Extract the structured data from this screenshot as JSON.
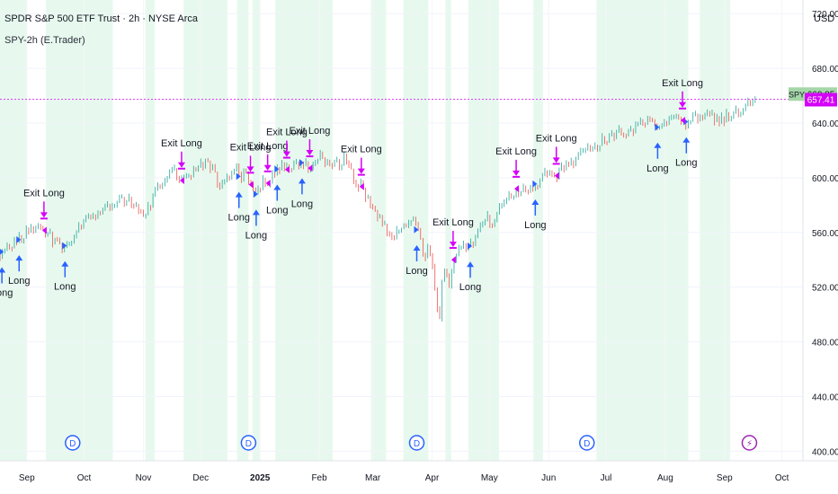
{
  "header": {
    "title": "SPDR S&P 500 ETF Trust · 2h · NYSE Arca",
    "indicator": "SPY-2h (E.Trader)",
    "currency": "USD"
  },
  "colors": {
    "up_candle": "#26a69a",
    "down_candle": "#ef5350",
    "long_region": "#e7f9ee",
    "long_arrow": "#2962ff",
    "exit_marker": "#d500f9",
    "last_price_tag": "#a5d6a7",
    "strategy_line": "#e040fb",
    "dividend_icon": "#2962ff",
    "event_icon": "#9c27b0"
  },
  "chart_data": {
    "type": "candlestick",
    "title": "SPDR S&P 500 ETF Trust · 2h · NYSE Arca",
    "ylabel": "USD",
    "ylim": [
      393,
      730
    ],
    "y_ticks": [
      "720.00",
      "680.00",
      "640.00",
      "600.00",
      "560.00",
      "520.00",
      "480.00",
      "440.00",
      "400.00"
    ],
    "x_ticks": [
      "Sep",
      "Oct",
      "Nov",
      "Dec",
      "2025",
      "Feb",
      "Mar",
      "Apr",
      "May",
      "Jun",
      "Jul",
      "Aug",
      "Sep",
      "Oct"
    ],
    "x_tick_days": [
      14,
      44,
      75,
      105,
      136,
      167,
      195,
      226,
      256,
      287,
      317,
      348,
      379,
      409
    ],
    "x_range_days": [
      0,
      420
    ],
    "price_path_days": [
      0,
      8,
      14,
      20,
      26,
      28,
      32,
      38,
      44,
      50,
      56,
      62,
      68,
      72,
      75,
      78,
      82,
      88,
      92,
      95,
      100,
      104,
      108,
      112,
      115,
      118,
      121,
      124,
      126,
      128,
      130,
      132,
      134,
      136,
      138,
      140,
      143,
      146,
      150,
      154,
      158,
      162,
      165,
      168,
      172,
      176,
      178,
      180,
      183,
      186,
      190,
      194,
      197,
      200,
      203,
      206,
      209,
      212,
      215,
      218,
      220,
      222,
      224,
      226,
      227,
      228,
      230,
      231,
      233,
      235,
      237,
      240,
      243,
      246,
      249,
      252,
      255,
      258,
      262,
      266,
      270,
      274,
      278,
      282,
      286,
      290,
      294,
      298,
      302,
      306,
      310,
      314,
      318,
      322,
      326,
      330,
      334,
      338,
      342,
      346,
      350,
      354,
      356,
      358,
      360,
      364,
      368,
      372,
      376,
      380,
      384,
      388,
      392,
      395
    ],
    "price_path_values": [
      545,
      552,
      560,
      563,
      560,
      553,
      548,
      555,
      568,
      572,
      577,
      585,
      583,
      577,
      572,
      580,
      590,
      602,
      605,
      598,
      602,
      608,
      612,
      603,
      593,
      598,
      603,
      607,
      595,
      603,
      597,
      593,
      588,
      592,
      600,
      596,
      603,
      608,
      606,
      608,
      611,
      607,
      612,
      615,
      612,
      610,
      607,
      613,
      606,
      598,
      592,
      578,
      575,
      565,
      560,
      552,
      566,
      560,
      570,
      562,
      555,
      543,
      548,
      540,
      526,
      510,
      495,
      525,
      532,
      520,
      540,
      548,
      552,
      550,
      556,
      565,
      570,
      567,
      578,
      586,
      592,
      590,
      593,
      598,
      604,
      600,
      606,
      610,
      613,
      620,
      622,
      626,
      630,
      631,
      635,
      633,
      638,
      640,
      638,
      636,
      642,
      645,
      644,
      640,
      642,
      645,
      643,
      646,
      640,
      645,
      648,
      650,
      655,
      661
    ],
    "long_regions_days": [
      [
        0,
        14
      ],
      [
        24,
        59
      ],
      [
        76,
        81
      ],
      [
        96,
        119
      ],
      [
        124,
        130
      ],
      [
        132,
        136
      ],
      [
        144,
        174
      ],
      [
        194,
        202
      ],
      [
        211,
        224
      ],
      [
        233,
        236
      ],
      [
        245,
        261
      ],
      [
        279,
        284
      ],
      [
        312,
        360
      ],
      [
        366,
        382
      ]
    ],
    "long_signals": [
      {
        "day": 1,
        "label": "Long"
      },
      {
        "day": 10,
        "label": "Long"
      },
      {
        "day": 34,
        "label": "Long"
      },
      {
        "day": 125,
        "label": "Long"
      },
      {
        "day": 134,
        "label": "Long"
      },
      {
        "day": 145,
        "label": "Long"
      },
      {
        "day": 158,
        "label": "Long"
      },
      {
        "day": 218,
        "label": "Long"
      },
      {
        "day": 246,
        "label": "Long"
      },
      {
        "day": 280,
        "label": "Long"
      },
      {
        "day": 344,
        "label": "Long"
      },
      {
        "day": 359,
        "label": "Long"
      }
    ],
    "exit_signals": [
      {
        "day": 23,
        "label": "Exit Long"
      },
      {
        "day": 95,
        "label": "Exit Long"
      },
      {
        "day": 131,
        "label": "Exit Long"
      },
      {
        "day": 140,
        "label": "Exit Long"
      },
      {
        "day": 150,
        "label": "Exit Long"
      },
      {
        "day": 162,
        "label": "Exit Long"
      },
      {
        "day": 189,
        "label": "Exit Long"
      },
      {
        "day": 237,
        "label": "Exit Long"
      },
      {
        "day": 270,
        "label": "Exit Long"
      },
      {
        "day": 291,
        "label": "Exit Long"
      },
      {
        "day": 357,
        "label": "Exit Long"
      }
    ],
    "last_price": {
      "label": "SPY",
      "value": "660.85"
    },
    "strategy_level": {
      "value": "657.41"
    },
    "dividend_days": [
      38,
      130,
      218,
      307
    ],
    "event_days": [
      392
    ],
    "dividend_label": "D",
    "event_label": "⚡"
  }
}
